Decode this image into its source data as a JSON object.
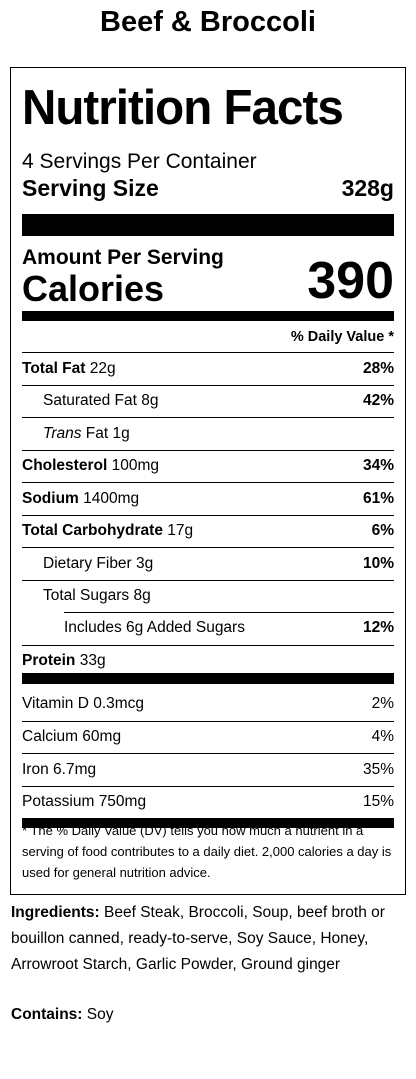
{
  "title": "Beef & Broccoli",
  "label": {
    "heading": "Nutrition Facts",
    "servings": "4 Servings Per Container",
    "serving_size_label": "Serving Size",
    "serving_size_value": "328g",
    "amount_per_serving": "Amount Per Serving",
    "calories_label": "Calories",
    "calories_value": "390",
    "dv_header": "% Daily Value *",
    "nutrients": [
      {
        "name": "Total Fat",
        "amount": "22g",
        "dv": "28%"
      },
      {
        "name": "Saturated Fat",
        "amount": "8g",
        "dv": "42%"
      },
      {
        "name": "Trans",
        "name_suffix": "Fat",
        "amount": "1g",
        "dv": ""
      },
      {
        "name": "Cholesterol",
        "amount": "100mg",
        "dv": "34%"
      },
      {
        "name": "Sodium",
        "amount": "1400mg",
        "dv": "61%"
      },
      {
        "name": "Total Carbohydrate",
        "amount": "17g",
        "dv": "6%"
      },
      {
        "name": "Dietary Fiber",
        "amount": "3g",
        "dv": "10%"
      },
      {
        "name": "Total Sugars",
        "amount": "8g",
        "dv": ""
      },
      {
        "name": "Includes 6g Added Sugars",
        "amount": "",
        "dv": "12%"
      },
      {
        "name": "Protein",
        "amount": "33g",
        "dv": ""
      }
    ],
    "vitamins": [
      {
        "name": "Vitamin D",
        "amount": "0.3mcg",
        "dv": "2%"
      },
      {
        "name": "Calcium",
        "amount": "60mg",
        "dv": "4%"
      },
      {
        "name": "Iron",
        "amount": "6.7mg",
        "dv": "35%"
      },
      {
        "name": "Potassium",
        "amount": "750mg",
        "dv": "15%"
      }
    ],
    "footnote": "* The % Daily Value (DV) tells you how much a nutrient in a serving of food contributes to a daily diet. 2,000 calories a day is used for general nutrition advice."
  },
  "ingredients": {
    "label": "Ingredients:",
    "text": "Beef Steak, Broccoli, Soup, beef broth or bouillon canned, ready-to-serve, Soy Sauce, Honey, Arrowroot Starch, Garlic Powder, Ground ginger"
  },
  "contains": {
    "label": "Contains:",
    "text": "Soy"
  }
}
